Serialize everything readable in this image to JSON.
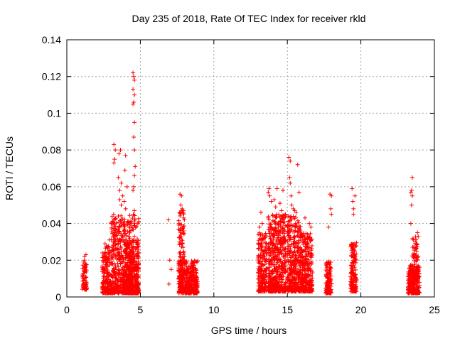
{
  "chart_data": {
    "type": "scatter",
    "title": "Day 235 of 2018, Rate Of TEC Index for receiver rkld",
    "xlabel": "GPS time / hours",
    "ylabel": "ROTI / TECUs",
    "xlim": [
      0,
      25
    ],
    "ylim": [
      0,
      0.14
    ],
    "x_ticks": [
      "0",
      "5",
      "10",
      "15",
      "20",
      "25"
    ],
    "y_ticks": [
      "0",
      "0.02",
      "0.04",
      "0.06",
      "0.08",
      "0.1",
      "0.12",
      "0.14"
    ],
    "grid": true,
    "marker": "plus",
    "color": "#ff0000",
    "clusters": [
      {
        "x": [
          1.05,
          1.35
        ],
        "y": [
          0.004,
          0.018
        ],
        "n": 70
      },
      {
        "x": [
          2.4,
          3.0
        ],
        "y": [
          0.002,
          0.028
        ],
        "n": 180
      },
      {
        "x": [
          3.0,
          4.9
        ],
        "y": [
          0.002,
          0.045
        ],
        "n": 650
      },
      {
        "x": [
          3.9,
          4.9
        ],
        "y": [
          0.002,
          0.03
        ],
        "n": 250
      },
      {
        "x": [
          7.6,
          8.9
        ],
        "y": [
          0.002,
          0.02
        ],
        "n": 420
      },
      {
        "x": [
          7.6,
          8.0
        ],
        "y": [
          0.01,
          0.048
        ],
        "n": 110
      },
      {
        "x": [
          13.0,
          13.6
        ],
        "y": [
          0.003,
          0.035
        ],
        "n": 200
      },
      {
        "x": [
          13.7,
          14.9
        ],
        "y": [
          0.003,
          0.045
        ],
        "n": 520
      },
      {
        "x": [
          15.0,
          15.9
        ],
        "y": [
          0.003,
          0.045
        ],
        "n": 350
      },
      {
        "x": [
          15.9,
          16.7
        ],
        "y": [
          0.003,
          0.035
        ],
        "n": 300
      },
      {
        "x": [
          17.6,
          18.0
        ],
        "y": [
          0.002,
          0.02
        ],
        "n": 120
      },
      {
        "x": [
          19.3,
          19.7
        ],
        "y": [
          0.003,
          0.03
        ],
        "n": 160
      },
      {
        "x": [
          23.2,
          24.0
        ],
        "y": [
          0.002,
          0.018
        ],
        "n": 240
      },
      {
        "x": [
          23.5,
          23.9
        ],
        "y": [
          0.01,
          0.033
        ],
        "n": 70
      }
    ],
    "points": [
      [
        1.2,
        0.022
      ],
      [
        1.2,
        0.02
      ],
      [
        1.3,
        0.023
      ],
      [
        1.25,
        0.016
      ],
      [
        1.15,
        0.019
      ],
      [
        2.6,
        0.029
      ],
      [
        2.8,
        0.024
      ],
      [
        2.9,
        0.031
      ],
      [
        3.2,
        0.083
      ],
      [
        3.25,
        0.075
      ],
      [
        3.3,
        0.08
      ],
      [
        3.2,
        0.073
      ],
      [
        3.55,
        0.078
      ],
      [
        3.65,
        0.08
      ],
      [
        3.5,
        0.065
      ],
      [
        3.6,
        0.058
      ],
      [
        3.7,
        0.062
      ],
      [
        3.7,
        0.05
      ],
      [
        3.6,
        0.053
      ],
      [
        3.8,
        0.055
      ],
      [
        3.9,
        0.052
      ],
      [
        4.0,
        0.048
      ],
      [
        4.1,
        0.06
      ],
      [
        4.0,
        0.077
      ],
      [
        3.95,
        0.069
      ],
      [
        4.5,
        0.122
      ],
      [
        4.55,
        0.12
      ],
      [
        4.6,
        0.118
      ],
      [
        4.5,
        0.113
      ],
      [
        4.6,
        0.11
      ],
      [
        4.55,
        0.106
      ],
      [
        4.5,
        0.105
      ],
      [
        4.6,
        0.095
      ],
      [
        4.55,
        0.087
      ],
      [
        4.6,
        0.08
      ],
      [
        4.65,
        0.071
      ],
      [
        4.6,
        0.066
      ],
      [
        4.55,
        0.06
      ],
      [
        4.5,
        0.058
      ],
      [
        4.6,
        0.047
      ],
      [
        6.9,
        0.042
      ],
      [
        7.0,
        0.02
      ],
      [
        7.1,
        0.015
      ],
      [
        6.95,
        0.007
      ],
      [
        7.7,
        0.056
      ],
      [
        7.8,
        0.055
      ],
      [
        7.75,
        0.05
      ],
      [
        7.85,
        0.048
      ],
      [
        7.9,
        0.046
      ],
      [
        8.0,
        0.042
      ],
      [
        13.2,
        0.046
      ],
      [
        13.3,
        0.04
      ],
      [
        13.1,
        0.038
      ],
      [
        13.7,
        0.057
      ],
      [
        13.75,
        0.059
      ],
      [
        13.8,
        0.055
      ],
      [
        13.9,
        0.052
      ],
      [
        14.1,
        0.053
      ],
      [
        14.3,
        0.059
      ],
      [
        14.2,
        0.049
      ],
      [
        14.5,
        0.051
      ],
      [
        14.7,
        0.058
      ],
      [
        14.6,
        0.047
      ],
      [
        15.1,
        0.076
      ],
      [
        15.2,
        0.074
      ],
      [
        15.15,
        0.065
      ],
      [
        15.2,
        0.062
      ],
      [
        15.25,
        0.055
      ],
      [
        15.3,
        0.05
      ],
      [
        15.4,
        0.048
      ],
      [
        15.5,
        0.047
      ],
      [
        15.6,
        0.046
      ],
      [
        15.7,
        0.072
      ],
      [
        15.8,
        0.057
      ],
      [
        16.2,
        0.043
      ],
      [
        16.5,
        0.04
      ],
      [
        16.6,
        0.038
      ],
      [
        17.9,
        0.056
      ],
      [
        18.0,
        0.055
      ],
      [
        17.95,
        0.048
      ],
      [
        18.0,
        0.045
      ],
      [
        17.8,
        0.038
      ],
      [
        19.4,
        0.059
      ],
      [
        19.45,
        0.052
      ],
      [
        19.5,
        0.048
      ],
      [
        19.6,
        0.055
      ],
      [
        19.5,
        0.045
      ],
      [
        23.5,
        0.065
      ],
      [
        23.45,
        0.058
      ],
      [
        23.4,
        0.057
      ],
      [
        23.5,
        0.055
      ],
      [
        23.45,
        0.05
      ],
      [
        23.4,
        0.04
      ],
      [
        23.85,
        0.035
      ],
      [
        23.9,
        0.033
      ],
      [
        23.7,
        0.03
      ],
      [
        23.75,
        0.026
      ]
    ]
  }
}
